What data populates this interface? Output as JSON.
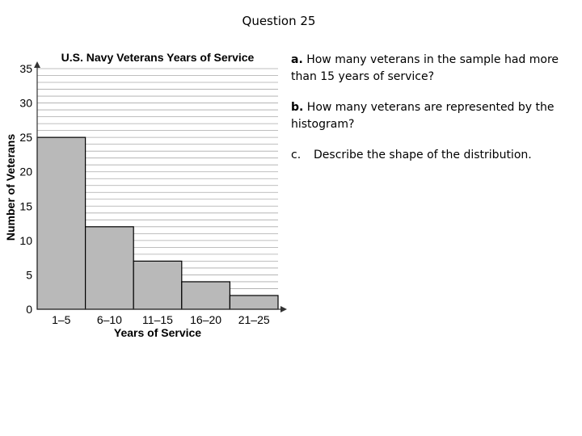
{
  "slide": {
    "title": "Question 25"
  },
  "questions": [
    {
      "letter": "a.",
      "text": "How many veterans in the sample had more than 15 years of service?"
    },
    {
      "letter": "b.",
      "text": "How many veterans are represented by the histogram?"
    },
    {
      "letter": "c.",
      "text": "Describe the shape of the distribution."
    }
  ],
  "chart_data": {
    "type": "bar",
    "title": "U.S. Navy Veterans Years of Service",
    "xlabel": "Years of Service",
    "ylabel": "Number of Veterans",
    "categories": [
      "1–5",
      "6–10",
      "11–15",
      "16–20",
      "21–25"
    ],
    "values": [
      25,
      12,
      7,
      4,
      2
    ],
    "ylim": [
      0,
      35
    ],
    "yticks": [
      "0",
      "5",
      "10",
      "15",
      "20",
      "25",
      "30",
      "35"
    ],
    "grid": true,
    "colors": {
      "bar": "#b9b9b9",
      "grid": "#aaaaaa",
      "axis": "#333333"
    }
  }
}
